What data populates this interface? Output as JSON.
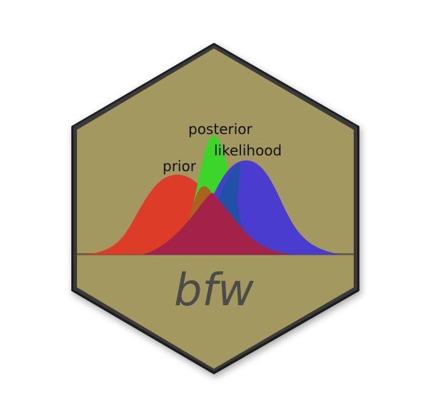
{
  "logo": {
    "name": "bfw",
    "labels": {
      "prior": "prior",
      "posterior": "posterior",
      "likelihood": "likelihood"
    }
  },
  "colors": {
    "background": "#a49861",
    "border": "#1a1a1a",
    "prior": "#dc3c28",
    "posterior": "#3cd62b",
    "likelihood": "#4b3cd0",
    "overlap": "#a4224a",
    "wordmark": "#4b4b47"
  }
}
